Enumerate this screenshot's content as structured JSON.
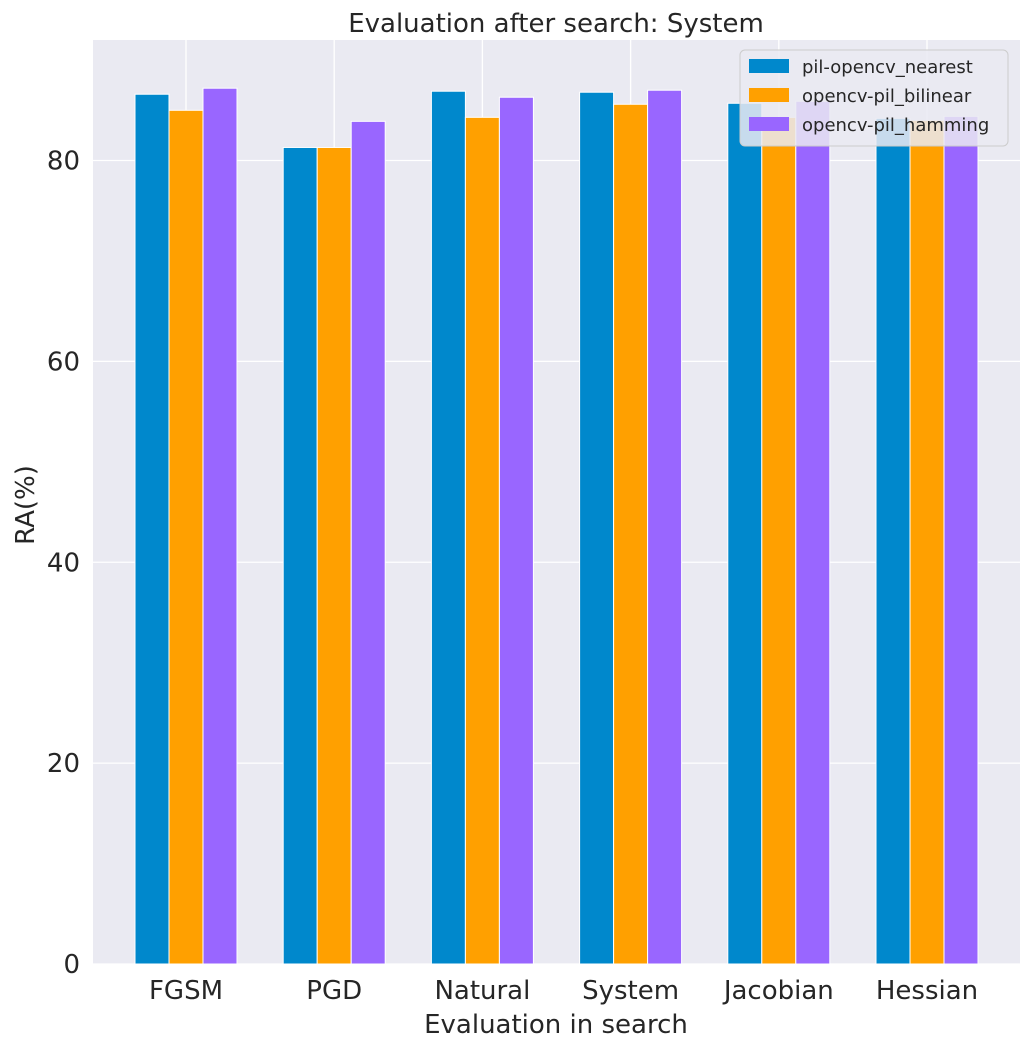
{
  "chart_data": {
    "type": "bar",
    "title": "Evaluation after search: System",
    "xlabel": "Evaluation in search",
    "ylabel": "RA(%)",
    "categories": [
      "FGSM",
      "PGD",
      "Natural",
      "System",
      "Jacobian",
      "Hessian"
    ],
    "series": [
      {
        "name": "pil-opencv_nearest",
        "color": "#0088cc",
        "values": [
          86.6,
          81.3,
          86.9,
          86.8,
          85.7,
          84.2
        ]
      },
      {
        "name": "opencv-pil_bilinear",
        "color": "#ffa000",
        "values": [
          85.0,
          81.3,
          84.3,
          85.6,
          84.3,
          84.0
        ]
      },
      {
        "name": "opencv-pil_hamming",
        "color": "#9966ff",
        "values": [
          87.2,
          83.9,
          86.3,
          87.0,
          85.9,
          84.4
        ]
      }
    ],
    "ylim": [
      0,
      92
    ],
    "yticks": [
      0,
      20,
      40,
      60,
      80
    ],
    "grid": true,
    "legend_position": "top-right",
    "background": "#eaeaf2"
  }
}
